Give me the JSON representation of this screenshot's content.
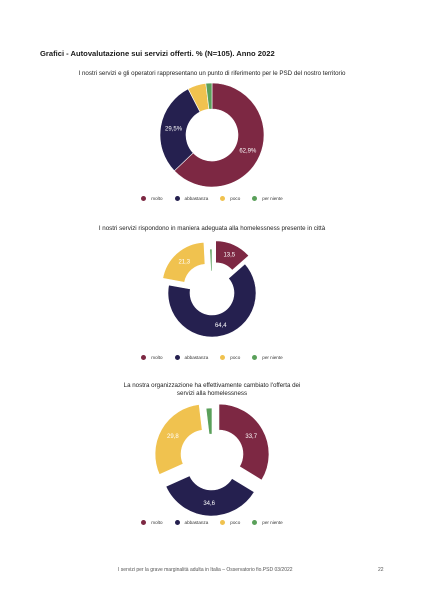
{
  "heading": "Grafici - Autovalutazione sui servizi offerti. % (N=105). Anno 2022",
  "legend": [
    {
      "label": "molto",
      "color": "#7d2843"
    },
    {
      "label": "abbastanza",
      "color": "#25204f"
    },
    {
      "label": "poco",
      "color": "#f0c24f"
    },
    {
      "label": "per niente",
      "color": "#5aa05a"
    }
  ],
  "chart_data": [
    {
      "type": "pie",
      "title": "I nostri servizi e gli operatori rappresentano un punto di riferimento per le PSD del nostro territorio",
      "categories": [
        "molto",
        "abbastanza",
        "poco",
        "per niente"
      ],
      "values": [
        62.9,
        29.5,
        5.7,
        1.9
      ],
      "data_labels": [
        "62,9%",
        "29,5%",
        "",
        ""
      ]
    },
    {
      "type": "pie",
      "title": "I nostri servizi rispondono in maniera adeguata alla homelessness presente in città",
      "categories": [
        "molto",
        "abbastanza",
        "poco",
        "per niente"
      ],
      "values": [
        13.5,
        64.4,
        21.3,
        0.8
      ],
      "data_labels": [
        "13,5",
        "64,4",
        "21,3",
        ""
      ]
    },
    {
      "type": "pie",
      "title": "La nostra organizzazione ha effettivamente cambiato l'offerta dei servizi alla homelessness",
      "categories": [
        "molto",
        "abbastanza",
        "poco",
        "per niente"
      ],
      "values": [
        33.7,
        34.6,
        29.8,
        1.9
      ],
      "data_labels": [
        "33,7",
        "34,6",
        "29,8",
        ""
      ]
    }
  ],
  "footer": {
    "text": "I servizi per la grave marginalità adulta in Italia – Osservatorio fio.PSD 03/2022",
    "page": "22"
  }
}
